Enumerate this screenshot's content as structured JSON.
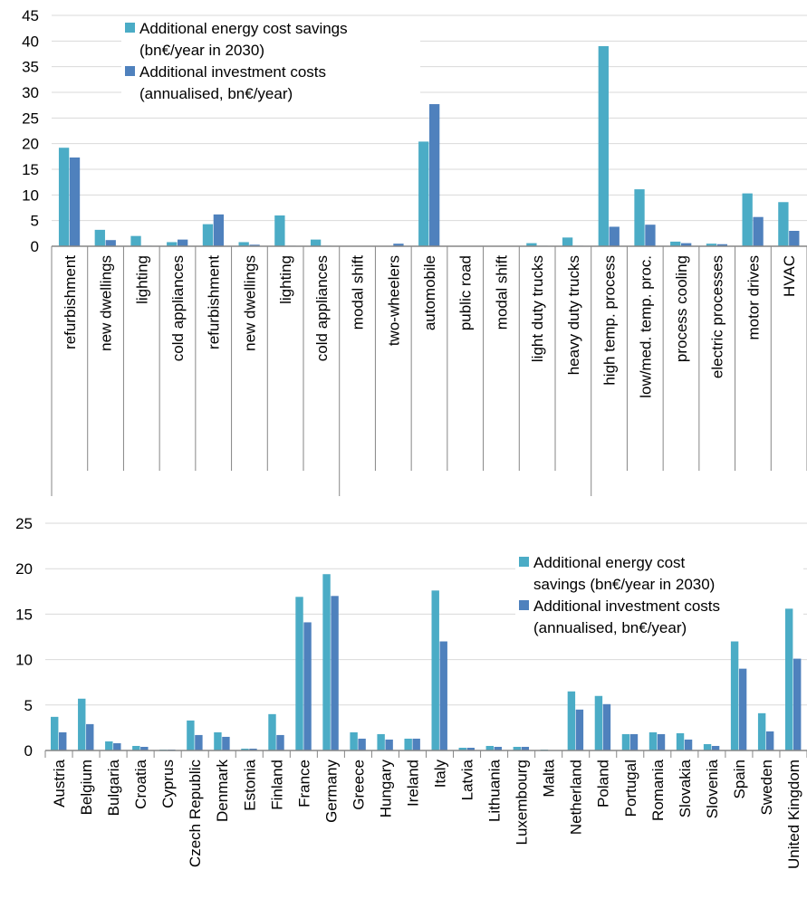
{
  "colors": {
    "savings": "#4BACC6",
    "investment": "#4F81BD",
    "grid": "#D9D9D9",
    "axis": "#868686"
  },
  "chart_data": [
    {
      "type": "bar",
      "title": "",
      "xlabel": "",
      "ylabel": "",
      "ylim": [
        0,
        45
      ],
      "yticks": [
        0,
        5,
        10,
        15,
        20,
        25,
        30,
        35,
        40,
        45
      ],
      "grid": true,
      "legend_position": "top-left",
      "categories": [
        "refurbishment",
        "new dwellings",
        "lighting",
        "cold appliances",
        "refurbishment",
        "new dwellings",
        "lighting",
        "cold appliances",
        "modal shift",
        "two-wheelers",
        "automobile",
        "public road",
        "modal shift",
        "light duty trucks",
        "heavy duty trucks",
        "high temp. process",
        "low/med. temp. proc.",
        "process cooling",
        "electric processes",
        "motor drives",
        "HVAC"
      ],
      "series": [
        {
          "name": "Additional energy cost savings (bn€/year in 2030)",
          "values": [
            19.2,
            3.2,
            2.0,
            0.8,
            4.3,
            0.8,
            6.0,
            1.3,
            0,
            0,
            20.4,
            0,
            0,
            0.6,
            1.7,
            39.0,
            11.1,
            0.9,
            0.5,
            10.3,
            8.6
          ]
        },
        {
          "name": "Additional investment costs (annualised, bn€/year)",
          "values": [
            17.3,
            1.2,
            0.1,
            1.3,
            6.2,
            0.3,
            0.1,
            0.1,
            0,
            0.5,
            27.7,
            0,
            0,
            0.1,
            0.1,
            3.8,
            4.2,
            0.6,
            0.4,
            5.7,
            3.0
          ]
        }
      ],
      "legend": [
        "Additional energy cost savings",
        "(bn€/year in 2030)",
        "Additional investment costs",
        "(annualised, bn€/year)"
      ]
    },
    {
      "type": "bar",
      "title": "",
      "xlabel": "",
      "ylabel": "",
      "ylim": [
        0,
        25
      ],
      "yticks": [
        0,
        5,
        10,
        15,
        20,
        25
      ],
      "grid": true,
      "legend_position": "top-right",
      "categories": [
        "Austria",
        "Belgium",
        "Bulgaria",
        "Croatia",
        "Cyprus",
        "Czech Republic",
        "Denmark",
        "Estonia",
        "Finland",
        "France",
        "Germany",
        "Greece",
        "Hungary",
        "Ireland",
        "Italy",
        "Latvia",
        "Lithuania",
        "Luxembourg",
        "Malta",
        "Netherland",
        "Poland",
        "Portugal",
        "Romania",
        "Slovakia",
        "Slovenia",
        "Spain",
        "Sweden",
        "United Kingdom"
      ],
      "series": [
        {
          "name": "Additional energy cost savings (bn€/year in 2030)",
          "values": [
            3.7,
            5.7,
            1.0,
            0.5,
            0.1,
            3.3,
            2.0,
            0.2,
            4.0,
            16.9,
            19.4,
            2.0,
            1.8,
            1.3,
            17.6,
            0.3,
            0.5,
            0.4,
            0.1,
            6.5,
            6.0,
            1.8,
            2.0,
            1.9,
            0.7,
            12.0,
            4.1,
            15.6
          ]
        },
        {
          "name": "Additional investment costs (annualised, bn€/year)",
          "values": [
            2.0,
            2.9,
            0.8,
            0.4,
            0.1,
            1.7,
            1.5,
            0.2,
            1.7,
            14.1,
            17.0,
            1.3,
            1.2,
            1.3,
            12.0,
            0.3,
            0.4,
            0.4,
            0.0,
            4.5,
            5.1,
            1.8,
            1.8,
            1.2,
            0.5,
            9.0,
            2.1,
            10.1
          ]
        }
      ],
      "legend": [
        "Additional energy cost",
        "savings (bn€/year in 2030)",
        "Additional investment costs",
        "(annualised, bn€/year)"
      ]
    }
  ]
}
